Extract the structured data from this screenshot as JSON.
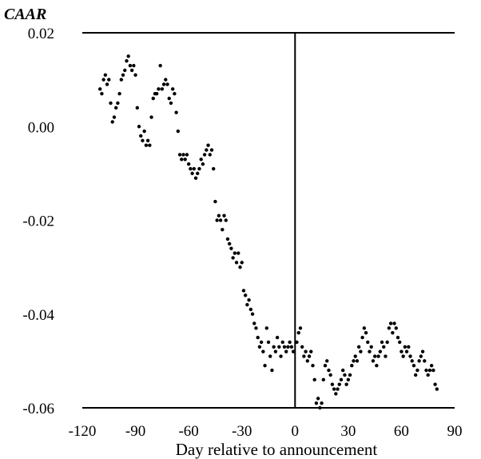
{
  "chart_data": {
    "type": "scatter",
    "title": "",
    "xlabel": "Day relative to announcement",
    "ylabel": "CAAR",
    "xlim": [
      -120,
      90
    ],
    "ylim": [
      -0.06,
      0.02
    ],
    "xticks": [
      "-120",
      "-90",
      "-60",
      "-30",
      "0",
      "30",
      "60",
      "90"
    ],
    "yticks": [
      "0.02",
      "0.00",
      "-0.02",
      "-0.04",
      "-0.06"
    ],
    "grid": false,
    "reference_line_x": 0,
    "series": [
      {
        "points": [
          [
            -110,
            0.008
          ],
          [
            -109,
            0.007
          ],
          [
            -108,
            0.01
          ],
          [
            -107,
            0.011
          ],
          [
            -106,
            0.009
          ],
          [
            -105,
            0.01
          ],
          [
            -104,
            0.005
          ],
          [
            -103,
            0.001
          ],
          [
            -102,
            0.002
          ],
          [
            -101,
            0.004
          ],
          [
            -100,
            0.005
          ],
          [
            -99,
            0.007
          ],
          [
            -98,
            0.01
          ],
          [
            -97,
            0.011
          ],
          [
            -96,
            0.012
          ],
          [
            -95,
            0.014
          ],
          [
            -94,
            0.015
          ],
          [
            -93,
            0.013
          ],
          [
            -92,
            0.012
          ],
          [
            -91,
            0.013
          ],
          [
            -90,
            0.011
          ],
          [
            -89,
            0.004
          ],
          [
            -88,
            0.0
          ],
          [
            -87,
            -0.002
          ],
          [
            -86,
            -0.003
          ],
          [
            -85,
            -0.001
          ],
          [
            -84,
            -0.004
          ],
          [
            -83,
            -0.003
          ],
          [
            -82,
            -0.004
          ],
          [
            -81,
            0.002
          ],
          [
            -80,
            0.006
          ],
          [
            -79,
            0.007
          ],
          [
            -78,
            0.007
          ],
          [
            -77,
            0.008
          ],
          [
            -76,
            0.013
          ],
          [
            -75,
            0.008
          ],
          [
            -74,
            0.009
          ],
          [
            -73,
            0.01
          ],
          [
            -72,
            0.009
          ],
          [
            -71,
            0.006
          ],
          [
            -70,
            0.005
          ],
          [
            -69,
            0.008
          ],
          [
            -68,
            0.007
          ],
          [
            -67,
            0.003
          ],
          [
            -66,
            -0.001
          ],
          [
            -65,
            -0.006
          ],
          [
            -64,
            -0.007
          ],
          [
            -63,
            -0.006
          ],
          [
            -62,
            -0.007
          ],
          [
            -61,
            -0.006
          ],
          [
            -60,
            -0.008
          ],
          [
            -59,
            -0.009
          ],
          [
            -58,
            -0.01
          ],
          [
            -57,
            -0.009
          ],
          [
            -56,
            -0.011
          ],
          [
            -55,
            -0.01
          ],
          [
            -54,
            -0.009
          ],
          [
            -53,
            -0.007
          ],
          [
            -52,
            -0.008
          ],
          [
            -51,
            -0.006
          ],
          [
            -50,
            -0.005
          ],
          [
            -49,
            -0.004
          ],
          [
            -48,
            -0.006
          ],
          [
            -47,
            -0.005
          ],
          [
            -46,
            -0.009
          ],
          [
            -45,
            -0.016
          ],
          [
            -44,
            -0.02
          ],
          [
            -43,
            -0.019
          ],
          [
            -42,
            -0.02
          ],
          [
            -41,
            -0.022
          ],
          [
            -40,
            -0.019
          ],
          [
            -39,
            -0.02
          ],
          [
            -38,
            -0.024
          ],
          [
            -37,
            -0.025
          ],
          [
            -36,
            -0.026
          ],
          [
            -35,
            -0.028
          ],
          [
            -34,
            -0.027
          ],
          [
            -33,
            -0.029
          ],
          [
            -32,
            -0.027
          ],
          [
            -31,
            -0.03
          ],
          [
            -30,
            -0.029
          ],
          [
            -29,
            -0.035
          ],
          [
            -28,
            -0.036
          ],
          [
            -27,
            -0.038
          ],
          [
            -26,
            -0.037
          ],
          [
            -25,
            -0.039
          ],
          [
            -24,
            -0.04
          ],
          [
            -23,
            -0.042
          ],
          [
            -22,
            -0.043
          ],
          [
            -21,
            -0.045
          ],
          [
            -20,
            -0.047
          ],
          [
            -19,
            -0.046
          ],
          [
            -18,
            -0.048
          ],
          [
            -17,
            -0.051
          ],
          [
            -16,
            -0.043
          ],
          [
            -15,
            -0.046
          ],
          [
            -14,
            -0.049
          ],
          [
            -13,
            -0.052
          ],
          [
            -12,
            -0.047
          ],
          [
            -11,
            -0.048
          ],
          [
            -10,
            -0.045
          ],
          [
            -9,
            -0.047
          ],
          [
            -8,
            -0.049
          ],
          [
            -7,
            -0.046
          ],
          [
            -6,
            -0.047
          ],
          [
            -5,
            -0.048
          ],
          [
            -4,
            -0.047
          ],
          [
            -3,
            -0.046
          ],
          [
            -2,
            -0.047
          ],
          [
            -1,
            -0.048
          ],
          [
            1,
            -0.046
          ],
          [
            2,
            -0.044
          ],
          [
            3,
            -0.043
          ],
          [
            4,
            -0.047
          ],
          [
            5,
            -0.049
          ],
          [
            6,
            -0.048
          ],
          [
            7,
            -0.05
          ],
          [
            8,
            -0.049
          ],
          [
            9,
            -0.048
          ],
          [
            10,
            -0.051
          ],
          [
            11,
            -0.054
          ],
          [
            12,
            -0.059
          ],
          [
            13,
            -0.058
          ],
          [
            14,
            -0.06
          ],
          [
            15,
            -0.059
          ],
          [
            16,
            -0.054
          ],
          [
            17,
            -0.051
          ],
          [
            18,
            -0.05
          ],
          [
            19,
            -0.052
          ],
          [
            20,
            -0.053
          ],
          [
            21,
            -0.055
          ],
          [
            22,
            -0.056
          ],
          [
            23,
            -0.057
          ],
          [
            24,
            -0.056
          ],
          [
            25,
            -0.055
          ],
          [
            26,
            -0.054
          ],
          [
            27,
            -0.052
          ],
          [
            28,
            -0.053
          ],
          [
            29,
            -0.055
          ],
          [
            30,
            -0.054
          ],
          [
            31,
            -0.053
          ],
          [
            32,
            -0.051
          ],
          [
            33,
            -0.05
          ],
          [
            34,
            -0.049
          ],
          [
            35,
            -0.05
          ],
          [
            36,
            -0.047
          ],
          [
            37,
            -0.048
          ],
          [
            38,
            -0.045
          ],
          [
            39,
            -0.043
          ],
          [
            40,
            -0.044
          ],
          [
            41,
            -0.046
          ],
          [
            42,
            -0.048
          ],
          [
            43,
            -0.047
          ],
          [
            44,
            -0.05
          ],
          [
            45,
            -0.049
          ],
          [
            46,
            -0.051
          ],
          [
            47,
            -0.049
          ],
          [
            48,
            -0.048
          ],
          [
            49,
            -0.046
          ],
          [
            50,
            -0.047
          ],
          [
            51,
            -0.049
          ],
          [
            52,
            -0.046
          ],
          [
            53,
            -0.043
          ],
          [
            54,
            -0.042
          ],
          [
            55,
            -0.044
          ],
          [
            56,
            -0.042
          ],
          [
            57,
            -0.043
          ],
          [
            58,
            -0.045
          ],
          [
            59,
            -0.046
          ],
          [
            60,
            -0.048
          ],
          [
            61,
            -0.049
          ],
          [
            62,
            -0.047
          ],
          [
            63,
            -0.048
          ],
          [
            64,
            -0.047
          ],
          [
            65,
            -0.049
          ],
          [
            66,
            -0.05
          ],
          [
            67,
            -0.051
          ],
          [
            68,
            -0.053
          ],
          [
            69,
            -0.052
          ],
          [
            70,
            -0.05
          ],
          [
            71,
            -0.049
          ],
          [
            72,
            -0.048
          ],
          [
            73,
            -0.05
          ],
          [
            74,
            -0.052
          ],
          [
            75,
            -0.053
          ],
          [
            76,
            -0.052
          ],
          [
            77,
            -0.051
          ],
          [
            78,
            -0.052
          ],
          [
            79,
            -0.055
          ],
          [
            80,
            -0.056
          ]
        ]
      }
    ]
  }
}
